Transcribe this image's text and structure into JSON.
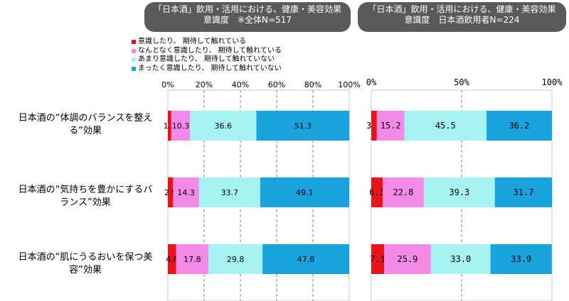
{
  "titles": [
    {
      "line1": "「日本酒」飲用・活用における、健康・美容効果",
      "line2": "意識度　※全体N=517"
    },
    {
      "line1": "「日本酒」飲用・活用における、健康・美容効果",
      "line2": "意識度　日本酒飲用者N=224"
    }
  ],
  "legend": [
    {
      "label": "意識したり、 期待して触れている",
      "color": "#e8141b"
    },
    {
      "label": "なんとなく意識したり、 期待して触れている",
      "color": "#f48ae8"
    },
    {
      "label": "あまり意識したり、 期待して触れていない",
      "color": "#a6f3f3"
    },
    {
      "label": "まったく意識したり、 期待して触れていない",
      "color": "#1aa3de"
    }
  ],
  "categories": [
    {
      "line1": "日本酒の“体調のバランスを整え",
      "line2": "る”効果"
    },
    {
      "line1": "日本酒の“気持ちを豊かにするバ",
      "line2": "ランス”効果"
    },
    {
      "line1": "日本酒の“肌にうるおいを保つ美",
      "line2": "容”効果"
    }
  ],
  "chart_data": [
    {
      "type": "bar",
      "orientation": "horizontal",
      "stacked": true,
      "title": "「日本酒」飲用・活用における、健康・美容効果 意識度　※全体N=517",
      "categories": [
        "日本酒の“体調のバランスを整える”効果",
        "日本酒の“気持ちを豊かにするバランス”効果",
        "日本酒の“肌にうるおいを保つ美容”効果"
      ],
      "xlim": [
        0,
        100
      ],
      "xticks": [
        "0%",
        "20%",
        "40%",
        "60%",
        "80%",
        "100%"
      ],
      "series": [
        {
          "name": "意識したり、 期待して触れている",
          "values": [
            1.9,
            2.9,
            4.6
          ]
        },
        {
          "name": "なんとなく意識したり、 期待して触れている",
          "values": [
            10.3,
            14.3,
            17.8
          ]
        },
        {
          "name": "あまり意識したり、 期待して触れていない",
          "values": [
            36.6,
            33.7,
            29.8
          ]
        },
        {
          "name": "まったく意識したり、 期待して触れていない",
          "values": [
            51.3,
            49.1,
            47.8
          ]
        }
      ]
    },
    {
      "type": "bar",
      "orientation": "horizontal",
      "stacked": true,
      "title": "「日本酒」飲用・活用における、健康・美容効果 意識度　日本酒飲用者N=224",
      "categories": [
        "日本酒の“体調のバランスを整える”効果",
        "日本酒の“気持ちを豊かにするバランス”効果",
        "日本酒の“肌にうるおいを保つ美容”効果"
      ],
      "xlim": [
        0,
        100
      ],
      "xticks": [
        "0%",
        "50%",
        "100%"
      ],
      "series": [
        {
          "name": "意識したり、 期待して触れている",
          "values": [
            3.1,
            6.3,
            7.1
          ]
        },
        {
          "name": "なんとなく意識したり、 期待して触れている",
          "values": [
            15.2,
            22.8,
            25.9
          ]
        },
        {
          "name": "あまり意識したり、 期待して触れていない",
          "values": [
            45.5,
            39.3,
            33.0
          ]
        },
        {
          "name": "まったく意識したり、 期待して触れていない",
          "values": [
            36.2,
            31.7,
            33.9
          ]
        }
      ]
    }
  ]
}
